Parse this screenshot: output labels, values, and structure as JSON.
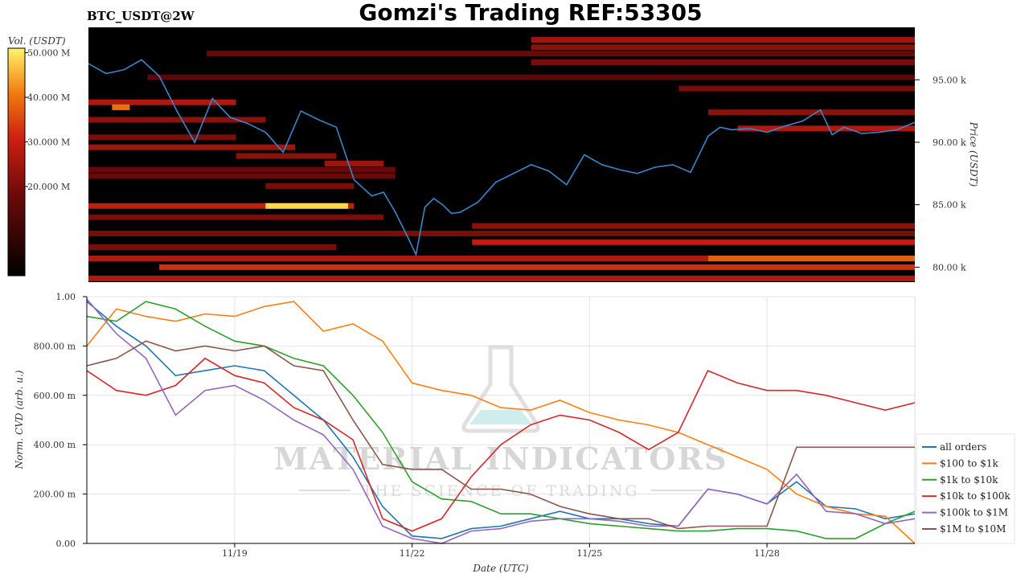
{
  "header": {
    "ticker": "BTC_USDT@2W",
    "title": "Gomzi's Trading REF:53305"
  },
  "watermark": {
    "brand": "MATERIAL INDICATORS",
    "tagline": "THE SCIENCE OF TRADING"
  },
  "colors": {
    "heatmap_low": "#000000",
    "heatmap_mid": "#cc1010",
    "heatmap_high": "#ffd84a",
    "heatmap_peak": "#ffffff",
    "price_line": "#3a86c8"
  },
  "chart_data": [
    {
      "type": "heatmap",
      "name": "orderbook-heatmap",
      "colorbar": {
        "label": "Vol. (USDT)",
        "ticks": [
          "50.000 M",
          "40.000 M",
          "30.000 M",
          "20.000 M"
        ],
        "tick_values": [
          50,
          40,
          30,
          20
        ],
        "range": [
          0,
          51
        ]
      },
      "ylabel": "Price (USDT)",
      "yticks": [
        "95.00 k",
        "90.00 k",
        "85.00 k",
        "80.00 k"
      ],
      "ytick_values": [
        95000,
        90000,
        85000,
        80000
      ],
      "ylim": [
        78800,
        99200
      ],
      "xlim": [
        0,
        14
      ],
      "price_series": {
        "name": "BTC price",
        "x": [
          0,
          0.3,
          0.6,
          0.9,
          1.2,
          1.5,
          1.8,
          2.1,
          2.4,
          2.7,
          3.0,
          3.3,
          3.6,
          3.9,
          4.2,
          4.5,
          4.8,
          5.0,
          5.2,
          5.4,
          5.55,
          5.7,
          5.85,
          6.0,
          6.15,
          6.3,
          6.6,
          6.9,
          7.2,
          7.5,
          7.8,
          8.1,
          8.4,
          8.7,
          9.0,
          9.3,
          9.6,
          9.9,
          10.2,
          10.5,
          10.7,
          10.9,
          11.2,
          11.5,
          11.8,
          12.1,
          12.4,
          12.6,
          12.8,
          13.1,
          13.4,
          13.7,
          14.0
        ],
        "y": [
          96300,
          95500,
          95800,
          96600,
          95300,
          92500,
          90000,
          93500,
          92000,
          91500,
          90800,
          89200,
          92500,
          91800,
          91200,
          87000,
          85700,
          86000,
          84400,
          82500,
          81000,
          84800,
          85500,
          85000,
          84300,
          84400,
          85200,
          86800,
          87500,
          88200,
          87700,
          86600,
          89000,
          88200,
          87800,
          87500,
          88000,
          88200,
          87600,
          90500,
          91200,
          91000,
          91100,
          90800,
          91300,
          91700,
          92600,
          90600,
          91200,
          90700,
          90800,
          91000,
          91600
        ]
      },
      "bands": [
        {
          "price": 98200,
          "x": [
            7.5,
            14.0
          ],
          "intensity": 0.5
        },
        {
          "price": 97600,
          "x": [
            7.5,
            14.0
          ],
          "intensity": 0.45
        },
        {
          "price": 97100,
          "x": [
            2.0,
            14.0
          ],
          "intensity": 0.35
        },
        {
          "price": 96400,
          "x": [
            7.5,
            14.0
          ],
          "intensity": 0.4
        },
        {
          "price": 95200,
          "x": [
            1.0,
            14.0
          ],
          "intensity": 0.3
        },
        {
          "price": 94300,
          "x": [
            10.0,
            14.0
          ],
          "intensity": 0.4
        },
        {
          "price": 93200,
          "x": [
            0.0,
            2.5
          ],
          "intensity": 0.55
        },
        {
          "price": 92800,
          "x": [
            0.4,
            0.7
          ],
          "intensity": 0.8
        },
        {
          "price": 92400,
          "x": [
            10.5,
            14.0
          ],
          "intensity": 0.45
        },
        {
          "price": 91800,
          "x": [
            0.0,
            3.0
          ],
          "intensity": 0.45
        },
        {
          "price": 91100,
          "x": [
            11.0,
            14.0
          ],
          "intensity": 0.55
        },
        {
          "price": 90400,
          "x": [
            0.0,
            2.5
          ],
          "intensity": 0.4
        },
        {
          "price": 89600,
          "x": [
            0.0,
            3.5
          ],
          "intensity": 0.5
        },
        {
          "price": 88900,
          "x": [
            2.5,
            4.2
          ],
          "intensity": 0.45
        },
        {
          "price": 88300,
          "x": [
            4.0,
            5.0
          ],
          "intensity": 0.5
        },
        {
          "price": 87800,
          "x": [
            0.0,
            5.2
          ],
          "intensity": 0.35
        },
        {
          "price": 87300,
          "x": [
            0.0,
            5.2
          ],
          "intensity": 0.35
        },
        {
          "price": 86500,
          "x": [
            3.0,
            4.5
          ],
          "intensity": 0.4
        },
        {
          "price": 84900,
          "x": [
            0.0,
            4.5
          ],
          "intensity": 0.6
        },
        {
          "price": 84900,
          "x": [
            3.0,
            4.4
          ],
          "intensity": 0.95
        },
        {
          "price": 84000,
          "x": [
            0.0,
            5.0
          ],
          "intensity": 0.4
        },
        {
          "price": 83300,
          "x": [
            6.5,
            14.0
          ],
          "intensity": 0.45
        },
        {
          "price": 82700,
          "x": [
            0.0,
            14.0
          ],
          "intensity": 0.4
        },
        {
          "price": 82000,
          "x": [
            6.5,
            14.0
          ],
          "intensity": 0.6
        },
        {
          "price": 81600,
          "x": [
            0.0,
            4.2
          ],
          "intensity": 0.4
        },
        {
          "price": 80700,
          "x": [
            0.0,
            14.0
          ],
          "intensity": 0.55
        },
        {
          "price": 80700,
          "x": [
            10.5,
            14.0
          ],
          "intensity": 0.75
        },
        {
          "price": 80000,
          "x": [
            1.2,
            14.0
          ],
          "intensity": 0.65
        },
        {
          "price": 79100,
          "x": [
            0.0,
            14.0
          ],
          "intensity": 0.55
        }
      ]
    },
    {
      "type": "line",
      "name": "normalized-cvd",
      "xlabel": "Date (UTC)",
      "ylabel": "Norm. CVD (arb. u.)",
      "xticks": [
        "11/19",
        "11/22",
        "11/25",
        "11/28"
      ],
      "xtick_values": [
        2.5,
        5.5,
        8.5,
        11.5
      ],
      "yticks": [
        "1.00",
        "800.00 m",
        "600.00 m",
        "400.00 m",
        "200.00 m",
        "0.00"
      ],
      "ytick_values": [
        1.0,
        0.8,
        0.6,
        0.4,
        0.2,
        0.0
      ],
      "ylim": [
        0,
        1
      ],
      "xlim": [
        0,
        14
      ],
      "grid": true,
      "legend_position": "bottom-right",
      "x": [
        0,
        0.5,
        1.0,
        1.5,
        2.0,
        2.5,
        3.0,
        3.5,
        4.0,
        4.5,
        5.0,
        5.5,
        6.0,
        6.5,
        7.0,
        7.5,
        8.0,
        8.5,
        9.0,
        9.5,
        10.0,
        10.5,
        11.0,
        11.5,
        12.0,
        12.5,
        13.0,
        13.5,
        14.0
      ],
      "series": [
        {
          "name": "all orders",
          "color": "#1f77b4",
          "values": [
            0.98,
            0.88,
            0.8,
            0.68,
            0.7,
            0.72,
            0.7,
            0.6,
            0.5,
            0.35,
            0.15,
            0.03,
            0.02,
            0.06,
            0.07,
            0.1,
            0.13,
            0.1,
            0.1,
            0.08,
            0.07,
            0.22,
            0.2,
            0.16,
            0.25,
            0.15,
            0.14,
            0.1,
            0.12
          ]
        },
        {
          "name": "$100 to $1k",
          "color": "#ff7f0e",
          "values": [
            0.8,
            0.95,
            0.92,
            0.9,
            0.93,
            0.92,
            0.96,
            0.98,
            0.86,
            0.89,
            0.82,
            0.65,
            0.62,
            0.6,
            0.55,
            0.54,
            0.58,
            0.53,
            0.5,
            0.48,
            0.45,
            0.4,
            0.35,
            0.3,
            0.2,
            0.15,
            0.12,
            0.11,
            0.0
          ]
        },
        {
          "name": "$1k to $10k",
          "color": "#2ca02c",
          "values": [
            0.92,
            0.9,
            0.98,
            0.95,
            0.88,
            0.82,
            0.8,
            0.75,
            0.72,
            0.6,
            0.45,
            0.25,
            0.18,
            0.17,
            0.12,
            0.12,
            0.1,
            0.08,
            0.07,
            0.06,
            0.05,
            0.05,
            0.06,
            0.06,
            0.05,
            0.02,
            0.02,
            0.08,
            0.13
          ]
        },
        {
          "name": "$10k to $100k",
          "color": "#d62728",
          "values": [
            0.7,
            0.62,
            0.6,
            0.64,
            0.75,
            0.68,
            0.65,
            0.55,
            0.5,
            0.42,
            0.1,
            0.05,
            0.1,
            0.27,
            0.4,
            0.48,
            0.52,
            0.5,
            0.45,
            0.38,
            0.45,
            0.7,
            0.65,
            0.62,
            0.62,
            0.6,
            0.57,
            0.54,
            0.57
          ]
        },
        {
          "name": "$100k to $1M",
          "color": "#9467bd",
          "values": [
            0.99,
            0.85,
            0.75,
            0.52,
            0.62,
            0.64,
            0.58,
            0.5,
            0.44,
            0.3,
            0.07,
            0.02,
            0.0,
            0.05,
            0.06,
            0.09,
            0.1,
            0.1,
            0.09,
            0.07,
            0.07,
            0.22,
            0.2,
            0.16,
            0.28,
            0.13,
            0.12,
            0.08,
            0.1
          ]
        },
        {
          "name": "$1M to $10M",
          "color": "#8c564b",
          "values": [
            0.72,
            0.75,
            0.82,
            0.78,
            0.8,
            0.78,
            0.8,
            0.72,
            0.7,
            0.5,
            0.32,
            0.3,
            0.3,
            0.22,
            0.22,
            0.2,
            0.15,
            0.12,
            0.1,
            0.1,
            0.06,
            0.07,
            0.07,
            0.07,
            0.39,
            0.39,
            0.39,
            0.39,
            0.39
          ]
        }
      ]
    }
  ]
}
